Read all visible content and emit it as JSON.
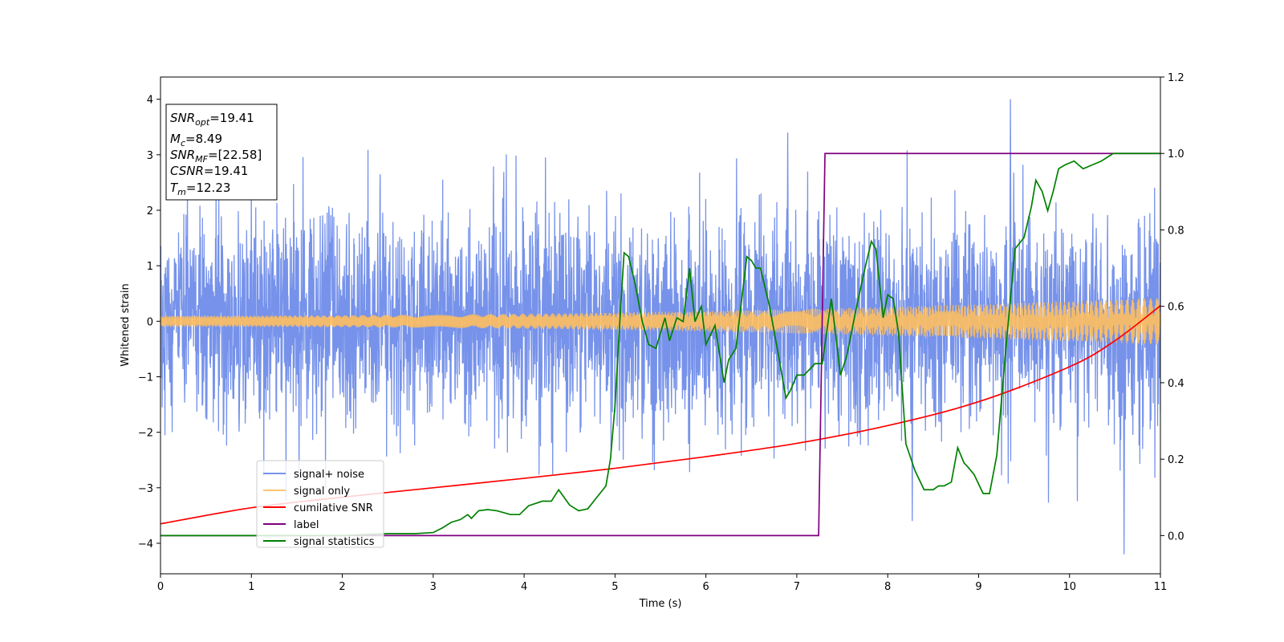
{
  "chart_data": {
    "type": "line",
    "xlabel": "Time (s)",
    "ylabel": "Whitened strain",
    "xlim": [
      0,
      11
    ],
    "ylim": [
      -4.55,
      4.4
    ],
    "y2lim": [
      -0.1,
      1.2
    ],
    "x_ticks": [
      0,
      1,
      2,
      3,
      4,
      5,
      6,
      7,
      8,
      9,
      10,
      11
    ],
    "x_tick_labels": [
      "0",
      "1",
      "2",
      "3",
      "4",
      "5",
      "6",
      "7",
      "8",
      "9",
      "10",
      "11"
    ],
    "y_ticks": [
      -4,
      -3,
      -2,
      -1,
      0,
      1,
      2,
      3,
      4
    ],
    "y_tick_labels": [
      "−4",
      "−3",
      "−2",
      "−1",
      "0",
      "1",
      "2",
      "3",
      "4"
    ],
    "y2_ticks": [
      0.0,
      0.2,
      0.4,
      0.6,
      0.8,
      1.0,
      1.2
    ],
    "y2_tick_labels": [
      "0.0",
      "0.2",
      "0.4",
      "0.6",
      "0.8",
      "1.0",
      "1.2"
    ],
    "grid": false,
    "legend_position": "lower-left",
    "colors": {
      "noise": "#6a89e8",
      "signal": "#ffbf5e",
      "csnr": "#ff0000",
      "label": "#800080",
      "stat": "#008000"
    },
    "series": [
      {
        "name": "signal+ noise",
        "axis": "left",
        "description_values": "whitened strain noise, roughly Gaussian with std ~0.95, peaks reaching about +4.0 near t=9.35 and about -4.2 near t=10.6",
        "noise_std": 0.95,
        "extremes": [
          [
            9.35,
            4.0
          ],
          [
            6.9,
            3.4
          ],
          [
            10.6,
            -4.2
          ],
          [
            8.27,
            -3.6
          ]
        ]
      },
      {
        "name": "signal only",
        "axis": "left",
        "amplitude_start": 0.1,
        "amplitude_end": 0.42,
        "cycles": 150
      },
      {
        "name": "cumilative SNR",
        "axis": "left",
        "x": [
          0,
          1,
          2,
          3,
          4,
          5,
          6,
          7,
          8,
          9,
          10,
          10.5,
          11
        ],
        "y": [
          -3.65,
          -3.36,
          -3.17,
          -3.0,
          -2.83,
          -2.65,
          -2.44,
          -2.2,
          -1.88,
          -1.45,
          -0.82,
          -0.35,
          0.28
        ]
      },
      {
        "name": "label",
        "axis": "right",
        "x": [
          0,
          7.24,
          7.31,
          11
        ],
        "y": [
          0.0,
          0.0,
          1.0,
          1.0
        ]
      },
      {
        "name": "signal statistics",
        "axis": "right",
        "x": [
          0,
          1,
          2,
          2.5,
          2.8,
          3.0,
          3.1,
          3.2,
          3.3,
          3.38,
          3.42,
          3.5,
          3.6,
          3.7,
          3.85,
          3.95,
          4.05,
          4.2,
          4.3,
          4.38,
          4.5,
          4.6,
          4.7,
          4.8,
          4.9,
          4.95,
          5.0,
          5.05,
          5.1,
          5.15,
          5.22,
          5.3,
          5.37,
          5.45,
          5.55,
          5.6,
          5.68,
          5.75,
          5.82,
          5.88,
          5.95,
          6.0,
          6.1,
          6.2,
          6.25,
          6.33,
          6.45,
          6.5,
          6.55,
          6.6,
          6.7,
          6.8,
          6.88,
          6.93,
          7.0,
          7.08,
          7.2,
          7.28,
          7.38,
          7.48,
          7.55,
          7.65,
          7.75,
          7.82,
          7.87,
          7.95,
          8.0,
          8.06,
          8.12,
          8.2,
          8.3,
          8.4,
          8.5,
          8.56,
          8.62,
          8.7,
          8.77,
          8.84,
          8.88,
          8.95,
          9.05,
          9.12,
          9.2,
          9.3,
          9.4,
          9.5,
          9.58,
          9.63,
          9.7,
          9.76,
          9.82,
          9.88,
          9.95,
          10.05,
          10.15,
          10.25,
          10.35,
          10.48,
          10.6,
          10.75,
          10.9,
          11.0
        ],
        "y": [
          0.0,
          0.0,
          0.0,
          0.005,
          0.005,
          0.008,
          0.02,
          0.035,
          0.042,
          0.055,
          0.045,
          0.065,
          0.068,
          0.065,
          0.055,
          0.055,
          0.078,
          0.09,
          0.09,
          0.12,
          0.08,
          0.065,
          0.07,
          0.1,
          0.13,
          0.2,
          0.34,
          0.55,
          0.74,
          0.73,
          0.66,
          0.56,
          0.5,
          0.49,
          0.57,
          0.51,
          0.57,
          0.56,
          0.7,
          0.56,
          0.6,
          0.5,
          0.55,
          0.4,
          0.46,
          0.49,
          0.73,
          0.72,
          0.7,
          0.7,
          0.6,
          0.47,
          0.36,
          0.38,
          0.42,
          0.42,
          0.45,
          0.45,
          0.62,
          0.42,
          0.47,
          0.59,
          0.7,
          0.77,
          0.75,
          0.57,
          0.63,
          0.62,
          0.53,
          0.24,
          0.17,
          0.12,
          0.12,
          0.13,
          0.13,
          0.14,
          0.23,
          0.19,
          0.18,
          0.16,
          0.11,
          0.11,
          0.21,
          0.49,
          0.75,
          0.78,
          0.86,
          0.93,
          0.9,
          0.85,
          0.9,
          0.96,
          0.97,
          0.98,
          0.96,
          0.97,
          0.98,
          1.0,
          1.0,
          1.0,
          1.0,
          1.0
        ]
      }
    ]
  },
  "legend": {
    "items": [
      {
        "label": "signal+ noise",
        "color_key": "noise"
      },
      {
        "label": "signal only",
        "color_key": "signal"
      },
      {
        "label": "cumilative SNR",
        "color_key": "csnr"
      },
      {
        "label": "label",
        "color_key": "label"
      },
      {
        "label": "signal statistics",
        "color_key": "stat"
      }
    ]
  },
  "info_box": {
    "snr_opt_label": "SNR",
    "snr_opt_sub": "opt",
    "snr_opt_value": "=19.41",
    "mc_label": "M",
    "mc_sub": "c",
    "mc_value": "=8.49",
    "snr_mf_label": "SNR",
    "snr_mf_sub": "MF",
    "snr_mf_value": "=[22.58]",
    "csnr_label": "CSNR",
    "csnr_value": "=19.41",
    "tm_label": "T",
    "tm_sub": "m",
    "tm_value": "=12.23"
  }
}
